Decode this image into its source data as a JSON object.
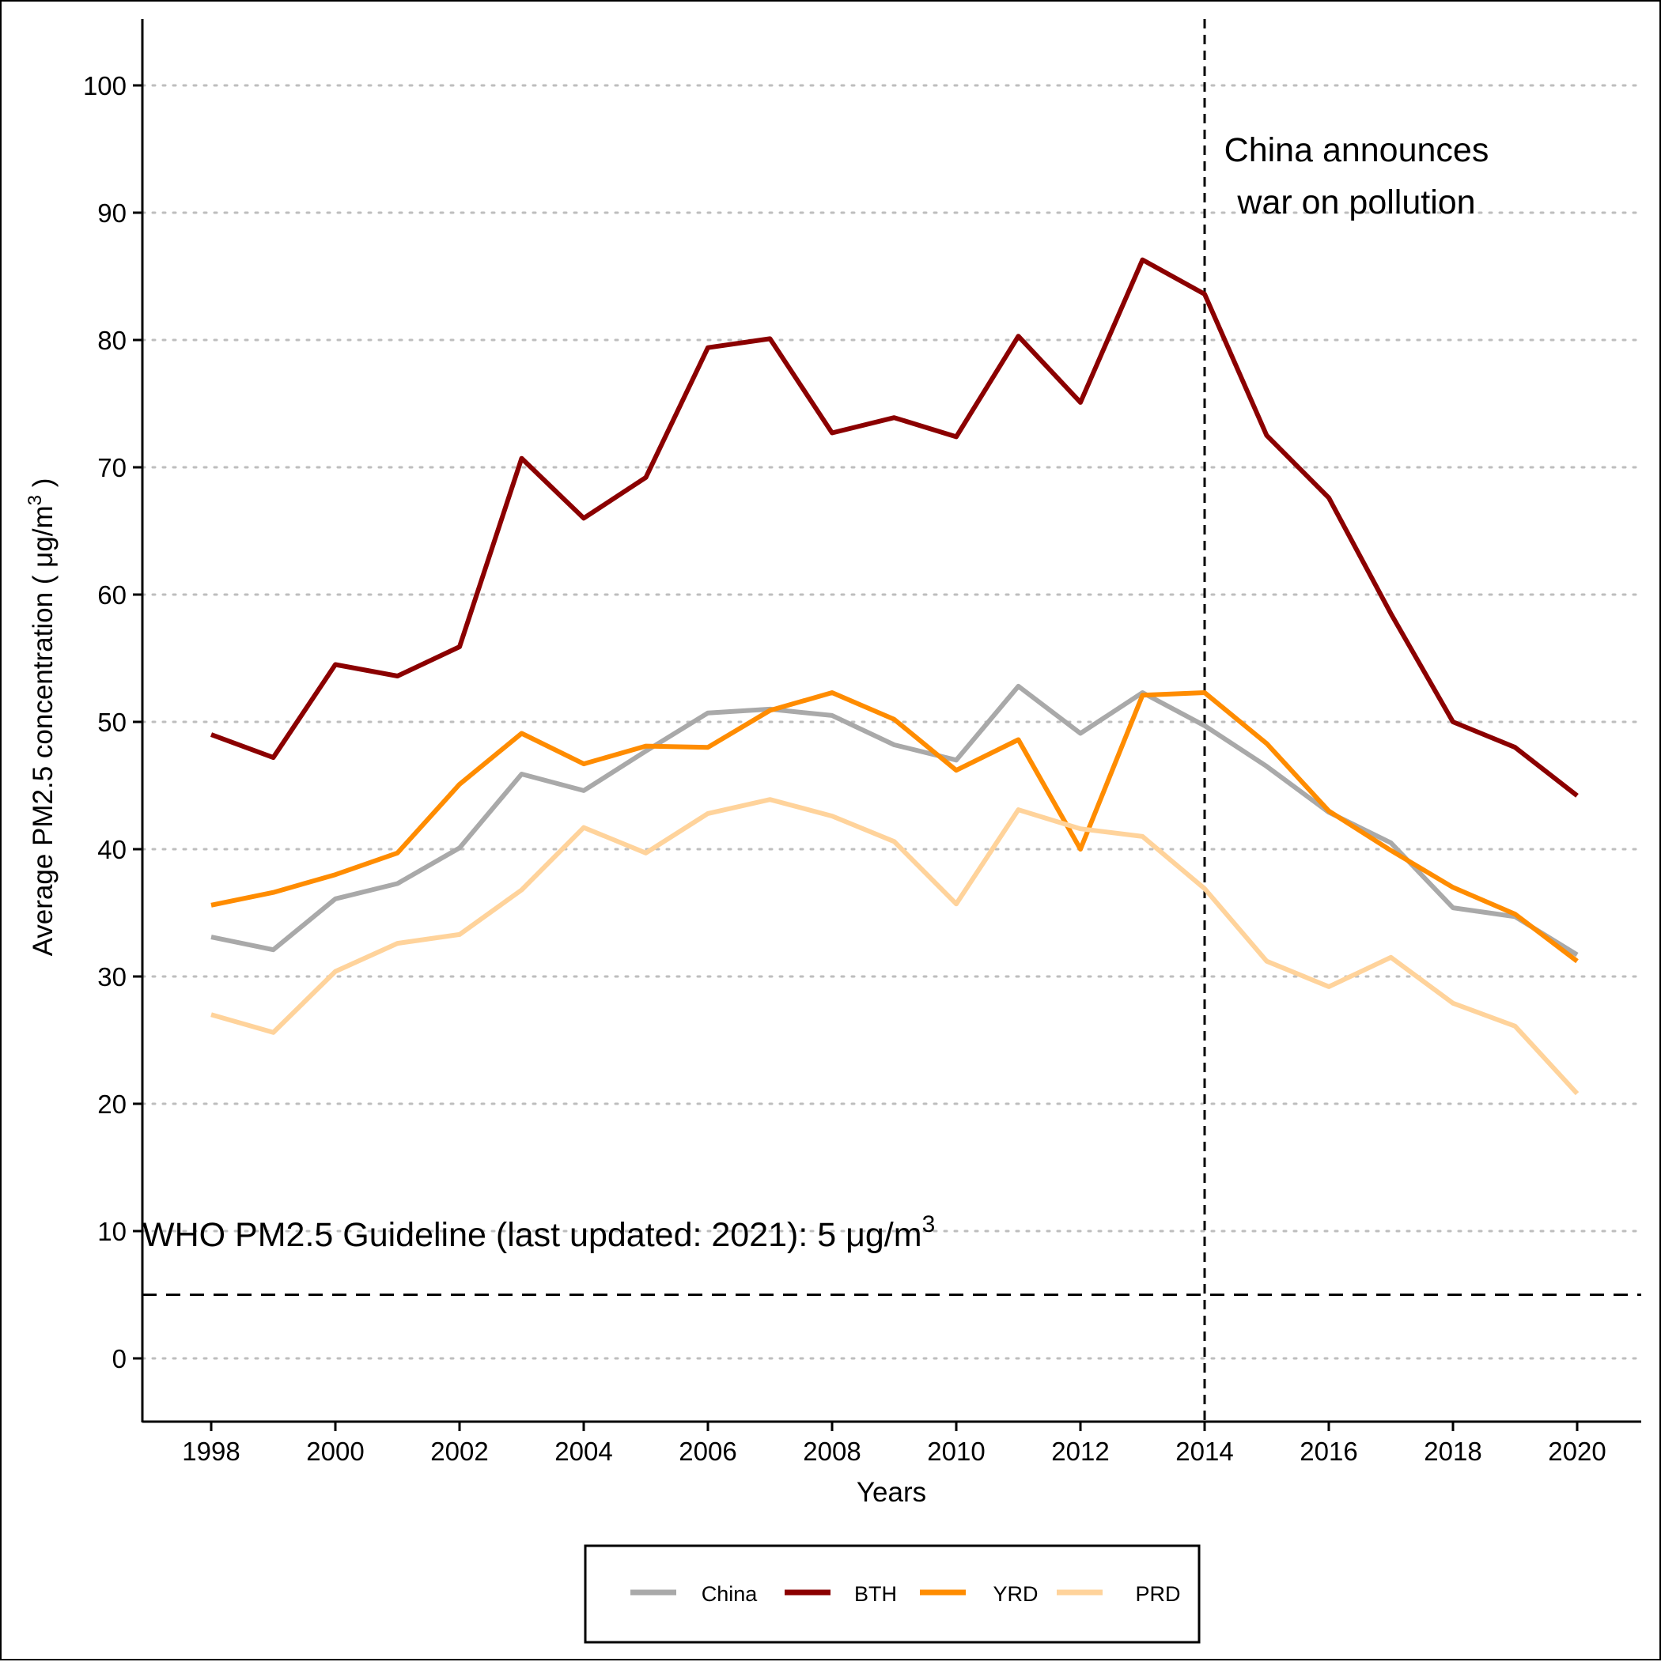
{
  "chart_data": {
    "type": "line",
    "xlabel": "Years",
    "ylabel": "Average PM2.5 concentration ( μg/m",
    "ylabel_sup": "3",
    "ylabel_suffix": " )",
    "xlim": [
      1997,
      2021
    ],
    "ylim": [
      -5,
      105
    ],
    "x_ticks": [
      1998,
      2000,
      2002,
      2004,
      2006,
      2008,
      2010,
      2012,
      2014,
      2016,
      2018,
      2020
    ],
    "y_ticks": [
      0,
      10,
      20,
      30,
      40,
      50,
      60,
      70,
      80,
      90,
      100
    ],
    "grid": "horizontal dotted",
    "legend_position": "bottom",
    "x": [
      1998,
      1999,
      2000,
      2001,
      2002,
      2003,
      2004,
      2005,
      2006,
      2007,
      2008,
      2009,
      2010,
      2011,
      2012,
      2013,
      2014,
      2015,
      2016,
      2017,
      2018,
      2019,
      2020
    ],
    "series": [
      {
        "name": "China",
        "color": "#A9A9A9",
        "values": [
          33.1,
          32.1,
          36.1,
          37.3,
          40.1,
          45.9,
          44.6,
          47.7,
          50.7,
          51.0,
          50.5,
          48.2,
          47.0,
          52.8,
          49.1,
          52.3,
          49.7,
          46.5,
          42.9,
          40.5,
          35.4,
          34.7,
          31.7
        ]
      },
      {
        "name": "BTH",
        "color": "#8B0000",
        "values": [
          49.0,
          47.2,
          54.5,
          53.6,
          55.9,
          70.7,
          66.0,
          69.2,
          79.4,
          80.1,
          72.7,
          73.9,
          72.4,
          80.3,
          75.1,
          86.3,
          83.6,
          72.5,
          67.6,
          58.5,
          50.0,
          48.0,
          44.2
        ]
      },
      {
        "name": "YRD",
        "color": "#FF8C00",
        "values": [
          35.6,
          36.6,
          38.0,
          39.7,
          45.1,
          49.1,
          46.7,
          48.1,
          48.0,
          50.9,
          52.3,
          50.2,
          46.2,
          48.6,
          40.0,
          52.1,
          52.3,
          48.3,
          43.0,
          39.9,
          37.0,
          34.9,
          31.2
        ]
      },
      {
        "name": "PRD",
        "color": "#FFD39B",
        "values": [
          27.0,
          25.6,
          30.4,
          32.6,
          33.3,
          36.8,
          41.7,
          39.7,
          42.8,
          43.9,
          42.6,
          40.6,
          35.7,
          43.1,
          41.6,
          41.0,
          36.9,
          31.2,
          29.2,
          31.5,
          27.9,
          26.1,
          20.8
        ]
      }
    ],
    "annotations": {
      "who_line_value": 5,
      "who_text": "WHO PM2.5 Guideline (last updated: 2021): 5 μg/m",
      "who_text_sup": "3",
      "war_line_year": 2014,
      "war_text_line1": "China announces",
      "war_text_line2": "war on pollution"
    }
  }
}
